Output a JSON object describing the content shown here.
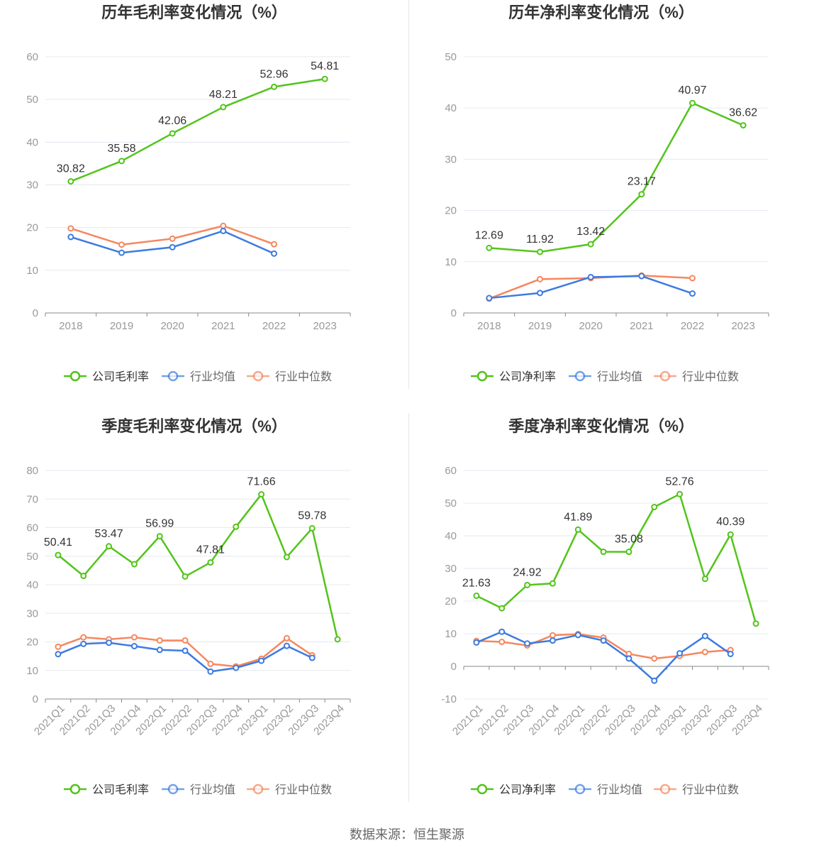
{
  "source": "数据来源：恒生聚源",
  "colors": {
    "company": "#52c41a",
    "average": "#3d7be0",
    "median": "#f5875e",
    "grid": "#e6e8f0",
    "axis": "#999999",
    "text": "#333333"
  },
  "chart_data": [
    {
      "type": "line",
      "title": "历年毛利率变化情况（%）",
      "categories": [
        "2018",
        "2019",
        "2020",
        "2021",
        "2022",
        "2023"
      ],
      "ylim": [
        0,
        60
      ],
      "yticks": [
        0,
        10,
        20,
        30,
        40,
        50,
        60
      ],
      "series": [
        {
          "name": "公司毛利率",
          "values": [
            30.82,
            35.58,
            42.06,
            48.21,
            52.96,
            54.81
          ],
          "labels": true
        },
        {
          "name": "行业均值",
          "values": [
            17.8,
            14.1,
            15.4,
            19.2,
            13.9,
            null
          ]
        },
        {
          "name": "行业中位数",
          "values": [
            19.8,
            16.0,
            17.4,
            20.4,
            16.1,
            null
          ]
        }
      ]
    },
    {
      "type": "line",
      "title": "历年净利率变化情况（%）",
      "categories": [
        "2018",
        "2019",
        "2020",
        "2021",
        "2022",
        "2023"
      ],
      "ylim": [
        0,
        50
      ],
      "yticks": [
        0,
        10,
        20,
        30,
        40,
        50
      ],
      "series": [
        {
          "name": "公司净利率",
          "values": [
            12.69,
            11.92,
            13.42,
            23.17,
            40.97,
            36.62
          ],
          "labels": true
        },
        {
          "name": "行业均值",
          "values": [
            2.9,
            3.9,
            7.0,
            7.2,
            3.8,
            null
          ]
        },
        {
          "name": "行业中位数",
          "values": [
            2.8,
            6.6,
            6.8,
            7.3,
            6.8,
            null
          ]
        }
      ]
    },
    {
      "type": "line",
      "title": "季度毛利率变化情况（%）",
      "categories": [
        "2021Q1",
        "2021Q2",
        "2021Q3",
        "2021Q4",
        "2022Q1",
        "2022Q2",
        "2022Q3",
        "2022Q4",
        "2023Q1",
        "2023Q2",
        "2023Q3",
        "2023Q4"
      ],
      "ylim": [
        0,
        80
      ],
      "yticks": [
        0,
        10,
        20,
        30,
        40,
        50,
        60,
        70,
        80
      ],
      "series": [
        {
          "name": "公司毛利率",
          "values": [
            50.41,
            43.1,
            53.47,
            47.2,
            56.99,
            42.9,
            47.81,
            60.3,
            71.66,
            49.7,
            59.78,
            20.9
          ],
          "labels": [
            true,
            false,
            true,
            false,
            true,
            false,
            true,
            false,
            true,
            false,
            true,
            false
          ]
        },
        {
          "name": "行业均值",
          "values": [
            15.7,
            19.3,
            19.7,
            18.5,
            17.2,
            16.9,
            9.6,
            10.9,
            13.4,
            18.6,
            14.4,
            null
          ]
        },
        {
          "name": "行业中位数",
          "values": [
            18.3,
            21.6,
            20.9,
            21.6,
            20.5,
            20.5,
            12.3,
            11.4,
            14.1,
            21.3,
            15.3,
            null
          ]
        }
      ]
    },
    {
      "type": "line",
      "title": "季度净利率变化情况（%）",
      "categories": [
        "2021Q1",
        "2021Q2",
        "2021Q3",
        "2021Q4",
        "2022Q1",
        "2022Q2",
        "2022Q3",
        "2022Q4",
        "2023Q1",
        "2023Q2",
        "2023Q3",
        "2023Q4"
      ],
      "ylim": [
        -10,
        60
      ],
      "yticks": [
        -10,
        0,
        10,
        20,
        30,
        40,
        50,
        60
      ],
      "series": [
        {
          "name": "公司净利率",
          "values": [
            21.63,
            17.8,
            24.92,
            25.4,
            41.89,
            35.1,
            35.08,
            48.8,
            52.76,
            26.8,
            40.39,
            13.1
          ],
          "labels": [
            true,
            false,
            true,
            false,
            true,
            false,
            true,
            false,
            true,
            false,
            true,
            false
          ]
        },
        {
          "name": "行业均值",
          "values": [
            7.3,
            10.6,
            7.0,
            7.9,
            9.6,
            7.9,
            2.4,
            -4.4,
            4.0,
            9.3,
            3.8,
            null
          ]
        },
        {
          "name": "行业中位数",
          "values": [
            7.8,
            7.5,
            6.4,
            9.5,
            9.9,
            8.8,
            3.8,
            2.4,
            3.2,
            4.4,
            5.0,
            null
          ]
        }
      ]
    }
  ]
}
